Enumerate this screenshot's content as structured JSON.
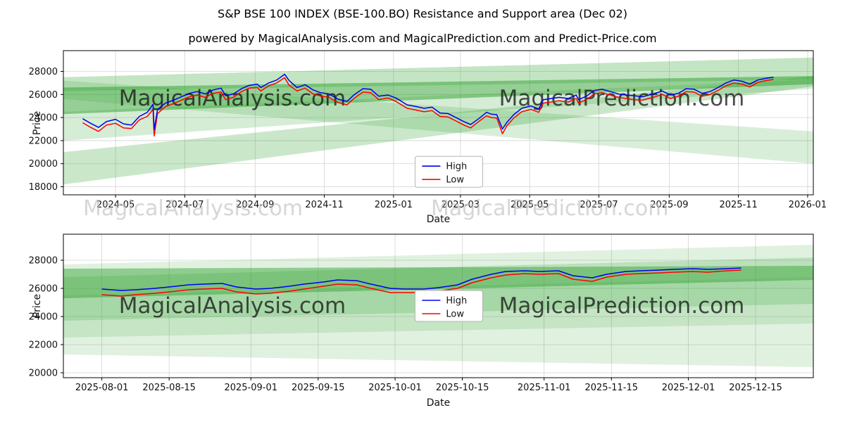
{
  "title": "S&P BSE 100 INDEX (BSE-100.BO) Resistance and Support area (Dec 02)",
  "subtitle": "powered by MagicalAnalysis.com and MagicalPrediction.com and Predict-Price.com",
  "watermarks": [
    "MagicalAnalysis.com",
    "MagicalPrediction.com"
  ],
  "colors": {
    "high": "#0000ee",
    "low": "#ff0000",
    "band": "#2ca02c",
    "grid": "#d3d3d3",
    "spine": "#000000",
    "watermark": "#c8c8c8",
    "legend_border": "#b3b3b3"
  },
  "chart_data": [
    {
      "type": "line",
      "name": "overview",
      "xlabel": "Date",
      "ylabel": "Price",
      "x_range": [
        "2024-03-16",
        "2026-01-06"
      ],
      "ylim": [
        17300,
        29800
      ],
      "grid": true,
      "legend_pos": [
        0.514,
        0.84
      ],
      "x_ticks": [
        {
          "d": "2024-05-01",
          "label": "2024-05"
        },
        {
          "d": "2024-07-01",
          "label": "2024-07"
        },
        {
          "d": "2024-09-01",
          "label": "2024-09"
        },
        {
          "d": "2024-11-01",
          "label": "2024-11"
        },
        {
          "d": "2025-01-01",
          "label": "2025-01"
        },
        {
          "d": "2025-03-01",
          "label": "2025-03"
        },
        {
          "d": "2025-05-01",
          "label": "2025-05"
        },
        {
          "d": "2025-07-01",
          "label": "2025-07"
        },
        {
          "d": "2025-09-01",
          "label": "2025-09"
        },
        {
          "d": "2025-11-01",
          "label": "2025-11"
        },
        {
          "d": "2026-01-01",
          "label": "2026-01"
        }
      ],
      "y_ticks": [
        18000,
        20000,
        22000,
        24000,
        26000,
        28000
      ],
      "legend": [
        {
          "label": "High",
          "color": "#0000ee"
        },
        {
          "label": "Low",
          "color": "#ff0000"
        }
      ],
      "bands": [
        [
          18200,
          21000,
          27600,
          26700,
          0.25
        ],
        [
          25600,
          27200,
          22800,
          20000,
          0.18
        ],
        [
          22000,
          24500,
          27300,
          26500,
          0.2
        ],
        [
          26300,
          27500,
          29200,
          27300,
          0.28
        ],
        [
          24300,
          26600,
          27600,
          26900,
          0.5
        ]
      ],
      "points": [
        [
          "2024-04-02",
          23900,
          23550
        ],
        [
          "2024-04-09",
          23500,
          23150
        ],
        [
          "2024-04-16",
          23150,
          22800
        ],
        [
          "2024-04-23",
          23650,
          23350
        ],
        [
          "2024-05-01",
          23850,
          23500
        ],
        [
          "2024-05-08",
          23450,
          23100
        ],
        [
          "2024-05-15",
          23350,
          23050
        ],
        [
          "2024-05-22",
          24100,
          23800
        ],
        [
          "2024-05-29",
          24450,
          24100
        ],
        [
          "2024-06-03",
          25150,
          24700
        ],
        [
          "2024-06-04",
          22950,
          22400
        ],
        [
          "2024-06-07",
          24700,
          24350
        ],
        [
          "2024-06-14",
          25250,
          24950
        ],
        [
          "2024-06-21",
          25500,
          25200
        ],
        [
          "2024-06-28",
          25800,
          25500
        ],
        [
          "2024-07-05",
          26100,
          25800
        ],
        [
          "2024-07-12",
          26250,
          25950
        ],
        [
          "2024-07-19",
          26050,
          25750
        ],
        [
          "2024-07-26",
          26400,
          26100
        ],
        [
          "2024-08-02",
          26550,
          26200
        ],
        [
          "2024-08-06",
          25900,
          25550
        ],
        [
          "2024-08-13",
          26050,
          25750
        ],
        [
          "2024-08-20",
          26500,
          26250
        ],
        [
          "2024-08-27",
          26800,
          26550
        ],
        [
          "2024-09-03",
          26900,
          26600
        ],
        [
          "2024-09-06",
          26600,
          26300
        ],
        [
          "2024-09-13",
          27000,
          26750
        ],
        [
          "2024-09-20",
          27250,
          27000
        ],
        [
          "2024-09-27",
          27750,
          27450
        ],
        [
          "2024-10-01",
          27200,
          26800
        ],
        [
          "2024-10-08",
          26600,
          26300
        ],
        [
          "2024-10-15",
          26850,
          26550
        ],
        [
          "2024-10-22",
          26400,
          26050
        ],
        [
          "2024-10-29",
          26150,
          25850
        ],
        [
          "2024-11-05",
          26050,
          25750
        ],
        [
          "2024-11-13",
          25600,
          25300
        ],
        [
          "2024-11-21",
          25400,
          25100
        ],
        [
          "2024-11-27",
          25950,
          25650
        ],
        [
          "2024-12-05",
          26500,
          26200
        ],
        [
          "2024-12-12",
          26450,
          26150
        ],
        [
          "2024-12-19",
          25850,
          25550
        ],
        [
          "2024-12-27",
          25950,
          25700
        ],
        [
          "2025-01-03",
          25700,
          25400
        ],
        [
          "2025-01-13",
          25100,
          24800
        ],
        [
          "2025-01-21",
          24950,
          24650
        ],
        [
          "2025-01-28",
          24800,
          24500
        ],
        [
          "2025-02-04",
          24900,
          24600
        ],
        [
          "2025-02-11",
          24400,
          24100
        ],
        [
          "2025-02-18",
          24350,
          24050
        ],
        [
          "2025-02-25",
          24000,
          23700
        ],
        [
          "2025-03-04",
          23650,
          23350
        ],
        [
          "2025-03-10",
          23400,
          23100
        ],
        [
          "2025-03-17",
          23900,
          23650
        ],
        [
          "2025-03-24",
          24450,
          24150
        ],
        [
          "2025-03-28",
          24300,
          24000
        ],
        [
          "2025-04-02",
          24250,
          23950
        ],
        [
          "2025-04-07",
          23000,
          22600
        ],
        [
          "2025-04-11",
          23600,
          23300
        ],
        [
          "2025-04-17",
          24250,
          23950
        ],
        [
          "2025-04-24",
          24800,
          24500
        ],
        [
          "2025-05-02",
          25000,
          24700
        ],
        [
          "2025-05-09",
          24750,
          24450
        ],
        [
          "2025-05-13",
          25550,
          25250
        ],
        [
          "2025-05-20",
          25650,
          25350
        ],
        [
          "2025-05-27",
          25750,
          25450
        ],
        [
          "2025-06-04",
          25650,
          25350
        ],
        [
          "2025-06-11",
          25950,
          25650
        ],
        [
          "2025-06-13",
          25550,
          25250
        ],
        [
          "2025-06-20",
          25850,
          25550
        ],
        [
          "2025-06-27",
          26350,
          26050
        ],
        [
          "2025-07-04",
          26450,
          26150
        ],
        [
          "2025-07-11",
          26250,
          25950
        ],
        [
          "2025-07-18",
          26050,
          25750
        ],
        [
          "2025-07-25",
          25950,
          25650
        ],
        [
          "2025-08-01",
          25900,
          25550
        ],
        [
          "2025-08-08",
          25800,
          25500
        ],
        [
          "2025-08-18",
          26050,
          25750
        ],
        [
          "2025-08-26",
          26300,
          26000
        ],
        [
          "2025-09-02",
          25950,
          25650
        ],
        [
          "2025-09-09",
          26100,
          25850
        ],
        [
          "2025-09-16",
          26500,
          26250
        ],
        [
          "2025-09-23",
          26450,
          26200
        ],
        [
          "2025-09-30",
          26100,
          25850
        ],
        [
          "2025-10-07",
          26250,
          26000
        ],
        [
          "2025-10-14",
          26600,
          26350
        ],
        [
          "2025-10-21",
          27000,
          26750
        ],
        [
          "2025-10-28",
          27250,
          27000
        ],
        [
          "2025-11-04",
          27150,
          26900
        ],
        [
          "2025-11-11",
          26900,
          26650
        ],
        [
          "2025-11-18",
          27250,
          27050
        ],
        [
          "2025-11-25",
          27400,
          27200
        ],
        [
          "2025-12-02",
          27500,
          27300
        ]
      ]
    },
    {
      "type": "line",
      "name": "recent",
      "xlabel": "Date",
      "ylabel": "Price",
      "x_range": [
        "2025-07-24",
        "2025-12-27"
      ],
      "ylim": [
        19650,
        29850
      ],
      "grid": true,
      "legend_pos": [
        0.514,
        0.5
      ],
      "x_ticks": [
        {
          "d": "2025-08-01",
          "label": "2025-08-01"
        },
        {
          "d": "2025-08-15",
          "label": "2025-08-15"
        },
        {
          "d": "2025-09-01",
          "label": "2025-09-01"
        },
        {
          "d": "2025-09-15",
          "label": "2025-09-15"
        },
        {
          "d": "2025-10-01",
          "label": "2025-10-01"
        },
        {
          "d": "2025-10-15",
          "label": "2025-10-15"
        },
        {
          "d": "2025-11-01",
          "label": "2025-11-01"
        },
        {
          "d": "2025-11-15",
          "label": "2025-11-15"
        },
        {
          "d": "2025-12-01",
          "label": "2025-12-01"
        },
        {
          "d": "2025-12-15",
          "label": "2025-12-15"
        }
      ],
      "y_ticks": [
        20000,
        22000,
        24000,
        26000,
        28000
      ],
      "legend": [
        {
          "label": "High",
          "color": "#0000ee"
        },
        {
          "label": "Low",
          "color": "#ff0000"
        }
      ],
      "bands": [
        [
          21300,
          27700,
          29100,
          20400,
          0.15
        ],
        [
          22500,
          25500,
          26800,
          23500,
          0.15
        ],
        [
          23700,
          26800,
          28200,
          24900,
          0.2
        ],
        [
          25300,
          27400,
          27600,
          26600,
          0.45
        ]
      ],
      "points": [
        [
          "2025-08-01",
          25950,
          25550
        ],
        [
          "2025-08-05",
          25850,
          25450
        ],
        [
          "2025-08-08",
          25900,
          25550
        ],
        [
          "2025-08-12",
          26000,
          25650
        ],
        [
          "2025-08-15",
          26100,
          25750
        ],
        [
          "2025-08-19",
          26250,
          25900
        ],
        [
          "2025-08-22",
          26300,
          25950
        ],
        [
          "2025-08-26",
          26350,
          26000
        ],
        [
          "2025-08-29",
          26100,
          25750
        ],
        [
          "2025-09-02",
          25950,
          25600
        ],
        [
          "2025-09-05",
          26000,
          25650
        ],
        [
          "2025-09-09",
          26150,
          25800
        ],
        [
          "2025-09-12",
          26300,
          25950
        ],
        [
          "2025-09-16",
          26450,
          26150
        ],
        [
          "2025-09-19",
          26600,
          26300
        ],
        [
          "2025-09-23",
          26550,
          26250
        ],
        [
          "2025-09-26",
          26300,
          26000
        ],
        [
          "2025-09-30",
          26000,
          25700
        ],
        [
          "2025-10-03",
          25950,
          25700
        ],
        [
          "2025-10-07",
          25950,
          25700
        ],
        [
          "2025-10-10",
          26050,
          25800
        ],
        [
          "2025-10-14",
          26250,
          26000
        ],
        [
          "2025-10-17",
          26650,
          26400
        ],
        [
          "2025-10-21",
          27000,
          26750
        ],
        [
          "2025-10-24",
          27200,
          26950
        ],
        [
          "2025-10-28",
          27250,
          27050
        ],
        [
          "2025-10-31",
          27200,
          27000
        ],
        [
          "2025-11-04",
          27250,
          27050
        ],
        [
          "2025-11-07",
          26900,
          26650
        ],
        [
          "2025-11-11",
          26750,
          26500
        ],
        [
          "2025-11-14",
          27000,
          26800
        ],
        [
          "2025-11-18",
          27200,
          27000
        ],
        [
          "2025-11-21",
          27250,
          27050
        ],
        [
          "2025-11-25",
          27300,
          27100
        ],
        [
          "2025-11-28",
          27350,
          27150
        ],
        [
          "2025-12-02",
          27400,
          27200
        ],
        [
          "2025-12-05",
          27350,
          27150
        ],
        [
          "2025-12-09",
          27400,
          27250
        ],
        [
          "2025-12-12",
          27450,
          27300
        ]
      ]
    }
  ]
}
